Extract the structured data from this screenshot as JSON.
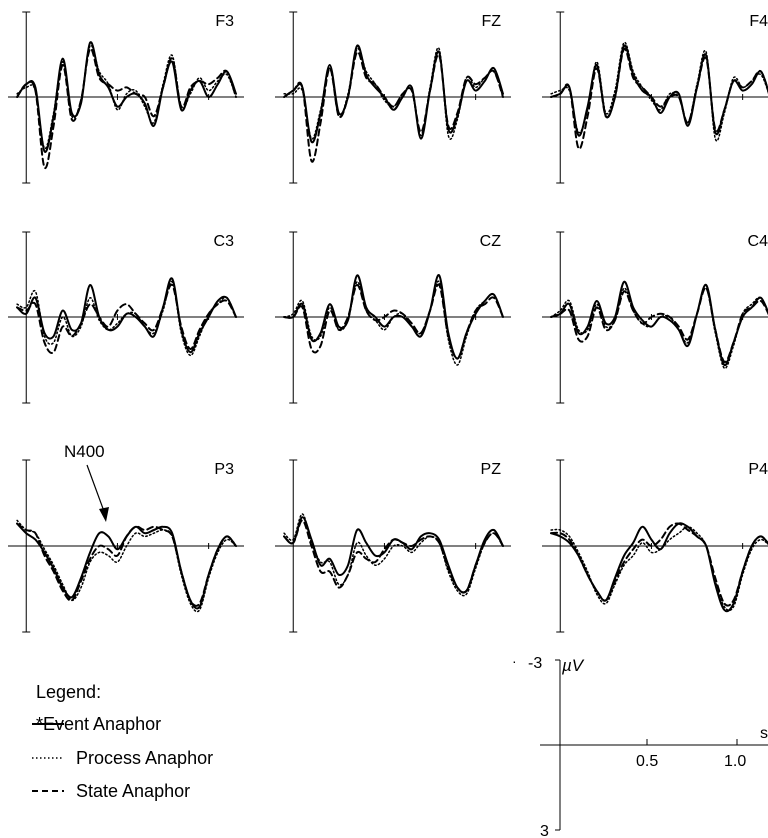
{
  "chart_data": {
    "type": "line",
    "figure_kind": "ERP waveform grid (3x3 electrodes)",
    "x_unit": "s",
    "y_unit": "µV",
    "polarity": "negative up",
    "x_range": [
      -0.1,
      1.2
    ],
    "y_range": [
      -3,
      3
    ],
    "x_ticks": [
      0.5,
      1.0
    ],
    "x_tick_labels": [
      "0.5",
      "1.0"
    ],
    "scale_bar": {
      "y_top_label": "-3",
      "y_bottom_label": "3",
      "y_unit_label": "µV",
      "x_unit_label": "s"
    },
    "annotation": {
      "text": "N400",
      "target_panel": "P3",
      "x": 0.42
    },
    "legend_title": "Legend:",
    "series": [
      {
        "key": "event",
        "name": "*Event Anaphor",
        "style": "solid",
        "color": "#000000"
      },
      {
        "key": "process",
        "name": "Process Anaphor",
        "style": "dotted",
        "color": "#000000"
      },
      {
        "key": "state",
        "name": "State Anaphor",
        "style": "dashed",
        "color": "#000000"
      }
    ],
    "x_samples": [
      -0.05,
      0.0,
      0.05,
      0.1,
      0.15,
      0.2,
      0.25,
      0.3,
      0.35,
      0.4,
      0.45,
      0.5,
      0.55,
      0.6,
      0.65,
      0.7,
      0.75,
      0.8,
      0.85,
      0.9,
      0.95,
      1.0,
      1.05,
      1.1,
      1.15
    ],
    "panels": [
      {
        "label": "F3",
        "series": {
          "event": [
            0.0,
            0.4,
            0.3,
            -1.7,
            -0.6,
            1.2,
            -0.5,
            -0.2,
            1.7,
            0.7,
            0.3,
            -0.3,
            0.0,
            0.1,
            -0.2,
            -0.9,
            0.3,
            1.1,
            -0.4,
            0.2,
            0.5,
            0.0,
            0.4,
            0.8,
            0.1
          ],
          "process": [
            0.1,
            0.3,
            0.2,
            -1.6,
            -0.5,
            1.1,
            -0.6,
            -0.1,
            1.6,
            0.8,
            0.4,
            -0.4,
            0.1,
            0.2,
            -0.3,
            -0.8,
            0.4,
            1.3,
            -0.3,
            0.1,
            0.6,
            0.2,
            0.5,
            0.7,
            0.0
          ],
          "state": [
            0.0,
            0.4,
            0.2,
            -2.2,
            -0.9,
            1.0,
            -0.7,
            -0.1,
            1.5,
            0.6,
            0.4,
            0.2,
            0.3,
            0.1,
            0.0,
            -0.6,
            0.3,
            1.2,
            -0.3,
            0.3,
            0.5,
            0.4,
            0.6,
            0.8,
            0.0
          ]
        }
      },
      {
        "label": "FZ",
        "series": {
          "event": [
            0.0,
            0.2,
            0.3,
            -1.4,
            -0.5,
            1.0,
            -0.5,
            0.0,
            1.6,
            0.7,
            0.3,
            0.0,
            -0.4,
            0.0,
            0.3,
            -1.3,
            0.2,
            1.4,
            -1.0,
            -0.6,
            0.5,
            0.2,
            0.5,
            0.9,
            0.1
          ],
          "process": [
            0.1,
            0.1,
            0.2,
            -1.3,
            -0.4,
            0.9,
            -0.6,
            0.1,
            1.5,
            0.8,
            0.4,
            -0.1,
            -0.3,
            0.1,
            0.2,
            -1.2,
            0.3,
            1.5,
            -1.2,
            -0.7,
            0.6,
            0.3,
            0.6,
            0.8,
            0.0
          ],
          "state": [
            0.0,
            0.2,
            0.3,
            -2.0,
            -0.8,
            0.9,
            -0.6,
            0.0,
            1.4,
            0.6,
            0.4,
            0.0,
            -0.3,
            0.1,
            0.2,
            -1.1,
            0.2,
            1.3,
            -0.9,
            -0.5,
            0.6,
            0.4,
            0.6,
            0.8,
            0.0
          ]
        }
      },
      {
        "label": "F4",
        "series": {
          "event": [
            0.0,
            0.1,
            0.3,
            -1.2,
            -0.3,
            1.0,
            -0.6,
            0.0,
            1.6,
            0.7,
            0.2,
            0.0,
            -0.5,
            0.0,
            0.1,
            -0.9,
            0.3,
            1.3,
            -1.1,
            -0.4,
            0.5,
            0.2,
            0.4,
            0.8,
            0.0
          ],
          "process": [
            0.1,
            0.2,
            0.2,
            -1.1,
            -0.4,
            1.1,
            -0.5,
            0.2,
            1.7,
            0.8,
            0.3,
            -0.1,
            -0.4,
            0.1,
            0.0,
            -0.8,
            0.4,
            1.4,
            -1.3,
            -0.5,
            0.6,
            0.3,
            0.5,
            0.7,
            0.0
          ],
          "state": [
            0.0,
            0.1,
            0.3,
            -1.6,
            -0.6,
            0.9,
            -0.6,
            0.0,
            1.5,
            0.6,
            0.3,
            0.0,
            -0.3,
            0.0,
            0.0,
            -0.8,
            0.3,
            1.2,
            -1.0,
            -0.4,
            0.5,
            0.3,
            0.5,
            0.8,
            0.0
          ]
        }
      },
      {
        "label": "C3",
        "series": {
          "event": [
            0.3,
            0.1,
            0.6,
            -0.5,
            -0.6,
            0.2,
            -0.4,
            -0.2,
            1.0,
            0.0,
            -0.4,
            -0.3,
            0.1,
            0.0,
            -0.3,
            -0.6,
            0.3,
            1.2,
            -0.4,
            -1.1,
            -0.5,
            0.0,
            0.5,
            0.6,
            0.0
          ],
          "process": [
            0.4,
            0.3,
            0.8,
            -0.6,
            -0.8,
            0.0,
            -0.6,
            -0.3,
            0.6,
            -0.1,
            -0.4,
            -0.2,
            0.1,
            0.1,
            -0.3,
            -0.5,
            0.2,
            1.1,
            -0.5,
            -1.2,
            -0.6,
            0.1,
            0.4,
            0.6,
            0.0
          ],
          "state": [
            0.3,
            0.2,
            0.4,
            -0.8,
            -1.1,
            -0.3,
            -0.6,
            -0.2,
            0.4,
            0.0,
            -0.3,
            0.2,
            0.4,
            0.1,
            -0.2,
            -0.4,
            0.3,
            1.0,
            -0.3,
            -1.0,
            -0.4,
            0.1,
            0.4,
            0.5,
            0.0
          ]
        }
      },
      {
        "label": "CZ",
        "series": {
          "event": [
            0.0,
            0.0,
            0.4,
            -0.7,
            -0.5,
            0.4,
            -0.3,
            -0.1,
            1.3,
            0.3,
            0.0,
            -0.3,
            0.0,
            0.0,
            -0.3,
            -0.6,
            0.2,
            1.3,
            -0.5,
            -1.3,
            -0.5,
            0.1,
            0.5,
            0.7,
            0.0
          ],
          "process": [
            0.0,
            0.1,
            0.5,
            -0.6,
            -0.6,
            0.3,
            -0.4,
            -0.1,
            1.1,
            0.2,
            -0.1,
            -0.4,
            0.0,
            0.1,
            -0.3,
            -0.5,
            0.2,
            1.1,
            -0.7,
            -1.5,
            -0.6,
            0.2,
            0.5,
            0.7,
            0.0
          ],
          "state": [
            0.0,
            0.0,
            0.3,
            -1.0,
            -0.9,
            0.2,
            -0.4,
            0.0,
            1.0,
            0.2,
            -0.1,
            0.0,
            0.2,
            0.1,
            -0.2,
            -0.5,
            0.2,
            1.0,
            -0.6,
            -1.3,
            -0.5,
            0.2,
            0.4,
            0.6,
            0.0
          ]
        }
      },
      {
        "label": "C4",
        "series": {
          "event": [
            0.0,
            0.1,
            0.4,
            -0.5,
            -0.3,
            0.5,
            -0.2,
            0.0,
            1.1,
            0.3,
            -0.1,
            -0.3,
            0.0,
            -0.1,
            -0.4,
            -0.9,
            0.1,
            1.0,
            -0.4,
            -1.5,
            -0.8,
            0.0,
            0.3,
            0.6,
            0.0
          ],
          "process": [
            0.0,
            0.2,
            0.5,
            -0.4,
            -0.4,
            0.4,
            -0.3,
            -0.1,
            0.9,
            0.2,
            -0.2,
            -0.3,
            0.0,
            0.0,
            -0.4,
            -0.8,
            0.1,
            0.9,
            -0.5,
            -1.6,
            -0.9,
            0.1,
            0.4,
            0.6,
            0.0
          ],
          "state": [
            0.0,
            0.1,
            0.2,
            -0.7,
            -0.6,
            0.3,
            -0.4,
            -0.1,
            0.8,
            0.2,
            -0.2,
            0.0,
            0.1,
            0.0,
            -0.3,
            -0.7,
            0.1,
            0.9,
            -0.4,
            -1.4,
            -0.8,
            0.1,
            0.3,
            0.5,
            0.0
          ]
        }
      },
      {
        "label": "P3",
        "series": {
          "event": [
            0.7,
            0.4,
            0.2,
            -0.2,
            -0.7,
            -1.3,
            -1.6,
            -1.0,
            -0.2,
            0.4,
            0.3,
            -0.1,
            0.3,
            0.6,
            0.4,
            0.5,
            0.6,
            0.4,
            -0.8,
            -1.7,
            -1.9,
            -0.9,
            -0.1,
            0.3,
            0.0
          ],
          "process": [
            0.8,
            0.5,
            0.4,
            -0.1,
            -0.6,
            -1.2,
            -1.7,
            -1.3,
            -0.5,
            -0.2,
            -0.3,
            -0.5,
            0.0,
            0.4,
            0.3,
            0.4,
            0.5,
            0.3,
            -0.9,
            -1.8,
            -2.0,
            -1.0,
            -0.2,
            0.2,
            0.0
          ],
          "state": [
            0.7,
            0.5,
            0.4,
            -0.3,
            -0.8,
            -1.4,
            -1.7,
            -1.1,
            -0.4,
            0.0,
            -0.1,
            -0.3,
            0.3,
            0.6,
            0.5,
            0.6,
            0.5,
            0.3,
            -0.8,
            -1.7,
            -1.8,
            -0.9,
            -0.1,
            0.3,
            0.0
          ]
        }
      },
      {
        "label": "PZ",
        "series": {
          "event": [
            0.3,
            0.1,
            0.9,
            0.2,
            -0.6,
            -0.4,
            -0.9,
            -0.6,
            0.5,
            0.1,
            -0.3,
            -0.2,
            0.2,
            0.1,
            -0.1,
            0.3,
            0.4,
            0.2,
            -0.6,
            -1.3,
            -1.4,
            -0.6,
            0.2,
            0.5,
            0.0
          ],
          "process": [
            0.4,
            0.2,
            1.0,
            0.1,
            -0.5,
            -0.5,
            -1.2,
            -0.9,
            0.1,
            -0.3,
            -0.6,
            -0.4,
            0.0,
            0.0,
            -0.2,
            0.1,
            0.3,
            0.1,
            -0.8,
            -1.4,
            -1.5,
            -0.7,
            0.1,
            0.4,
            0.0
          ],
          "state": [
            0.3,
            0.1,
            0.8,
            0.0,
            -0.8,
            -0.8,
            -1.3,
            -0.9,
            -0.2,
            -0.4,
            -0.5,
            -0.1,
            0.2,
            0.1,
            0.0,
            0.2,
            0.3,
            0.1,
            -0.7,
            -1.3,
            -1.4,
            -0.6,
            0.1,
            0.4,
            0.0
          ]
        }
      },
      {
        "label": "P4",
        "series": {
          "event": [
            0.4,
            0.3,
            0.1,
            -0.3,
            -0.9,
            -1.4,
            -1.7,
            -1.0,
            -0.3,
            0.1,
            0.6,
            0.2,
            -0.1,
            0.4,
            0.7,
            0.6,
            0.3,
            0.0,
            -1.2,
            -2.0,
            -1.8,
            -0.8,
            0.0,
            0.3,
            0.0
          ],
          "process": [
            0.5,
            0.5,
            0.3,
            -0.2,
            -0.8,
            -1.5,
            -1.8,
            -1.2,
            -0.6,
            -0.3,
            0.1,
            -0.2,
            -0.1,
            0.2,
            0.4,
            0.6,
            0.4,
            0.0,
            -1.1,
            -1.9,
            -1.9,
            -0.9,
            -0.1,
            0.2,
            0.0
          ],
          "state": [
            0.4,
            0.4,
            0.2,
            -0.3,
            -0.9,
            -1.4,
            -1.7,
            -1.1,
            -0.5,
            -0.1,
            0.2,
            0.0,
            0.2,
            0.6,
            0.7,
            0.5,
            0.3,
            0.0,
            -1.0,
            -1.8,
            -1.7,
            -0.8,
            0.0,
            0.3,
            0.0
          ]
        }
      }
    ]
  }
}
